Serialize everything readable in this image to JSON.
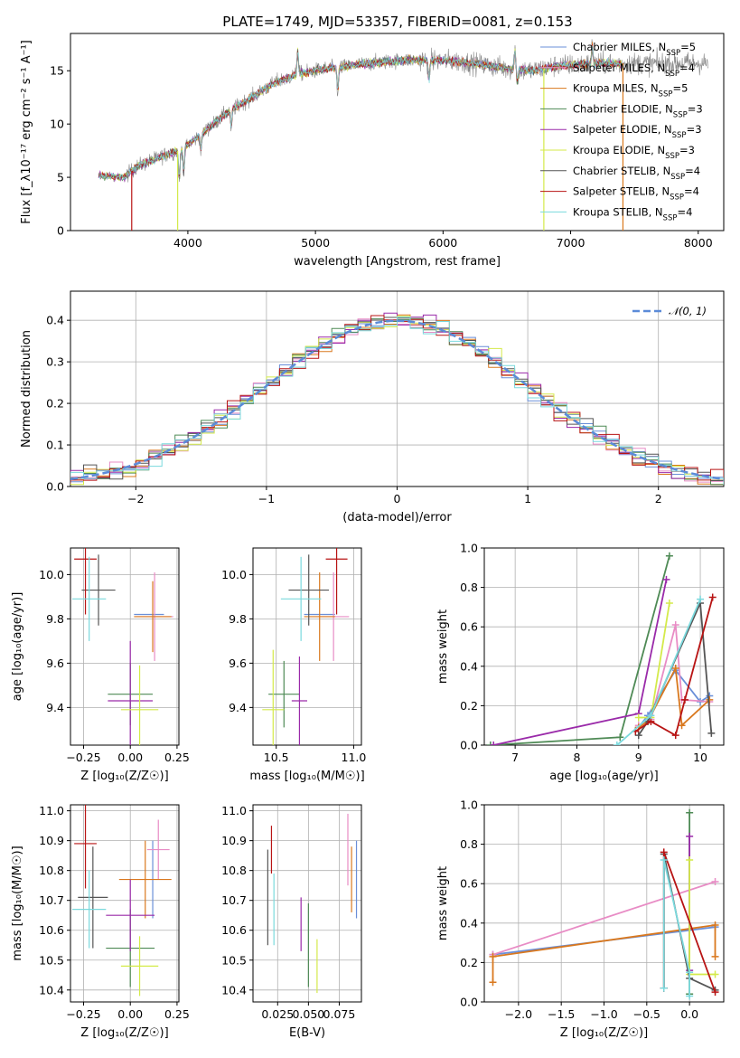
{
  "figure": {
    "title": "PLATE=1749, MJD=53357, FIBERID=0081, z=0.153"
  },
  "colors": {
    "Chabrier MILES": "#6a8fd8",
    "Salpeter MILES": "#e88cc5",
    "Kroupa MILES": "#d9781e",
    "Chabrier ELODIE": "#4e8a55",
    "Salpeter ELODIE": "#9a2aa9",
    "Kroupa ELODIE": "#d4ea4a",
    "Chabrier STELIB": "#555555",
    "Salpeter STELIB": "#b81414",
    "Kroupa STELIB": "#7ad9dd",
    "data": "#888888",
    "normal": "#5b8bd8"
  },
  "chart_data": [
    {
      "id": "spectrum",
      "type": "line",
      "xlabel": "wavelength [Angstrom, rest frame]",
      "ylabel": "Flux [f_λ10⁻¹⁷ erg cm⁻² s⁻¹ A⁻¹]",
      "xlim": [
        3080,
        8200
      ],
      "ylim": [
        0,
        18.5
      ],
      "xticks": [
        4000,
        5000,
        6000,
        7000,
        8000
      ],
      "yticks": [
        0,
        5,
        10,
        15
      ],
      "grid": false,
      "legend_position": "upper right",
      "continuum_x": [
        3300,
        3500,
        3600,
        3800,
        3950,
        4100,
        4300,
        4500,
        4700,
        4900,
        5100,
        5300,
        5500,
        5700,
        5900,
        6100,
        6300,
        6500,
        6700,
        6900,
        7100,
        7300,
        7400
      ],
      "continuum_y": [
        5.2,
        5.0,
        6.0,
        7.0,
        7.6,
        9.0,
        11.0,
        12.5,
        14.0,
        14.8,
        15.2,
        15.5,
        15.8,
        16.0,
        16.0,
        15.9,
        15.6,
        15.2,
        15.0,
        15.5,
        15.6,
        15.7,
        15.7
      ],
      "series": [
        {
          "name": "Chabrier MILES, N_SSP=5",
          "name_main": "Chabrier MILES, N",
          "name_sub": "SSP",
          "name_tail": "=5"
        },
        {
          "name": "Salpeter MILES, N_SSP=4",
          "name_main": "Salpeter MILES, N",
          "name_sub": "SSP",
          "name_tail": "=4"
        },
        {
          "name": "Kroupa MILES, N_SSP=5",
          "name_main": "Kroupa MILES, N",
          "name_sub": "SSP",
          "name_tail": "=5"
        },
        {
          "name": "Chabrier ELODIE, N_SSP=3",
          "name_main": "Chabrier ELODIE, N",
          "name_sub": "SSP",
          "name_tail": "=3"
        },
        {
          "name": "Salpeter ELODIE, N_SSP=3",
          "name_main": "Salpeter ELODIE, N",
          "name_sub": "SSP",
          "name_tail": "=3"
        },
        {
          "name": "Kroupa ELODIE, N_SSP=3",
          "name_main": "Kroupa ELODIE, N",
          "name_sub": "SSP",
          "name_tail": "=3"
        },
        {
          "name": "Chabrier STELIB, N_SSP=4",
          "name_main": "Chabrier STELIB, N",
          "name_sub": "SSP",
          "name_tail": "=4"
        },
        {
          "name": "Salpeter STELIB, N_SSP=4",
          "name_main": "Salpeter STELIB, N",
          "name_sub": "SSP",
          "name_tail": "=4"
        },
        {
          "name": "Kroupa STELIB, N_SSP=4",
          "name_main": "Kroupa STELIB, N",
          "name_sub": "SSP",
          "name_tail": "=4"
        }
      ],
      "drops": [
        {
          "x": 3560,
          "series": "Salpeter STELIB"
        },
        {
          "x": 3920,
          "series": "Kroupa ELODIE"
        },
        {
          "x": 6790,
          "series": "Kroupa ELODIE"
        },
        {
          "x": 7410,
          "series": "Kroupa MILES"
        }
      ]
    },
    {
      "id": "residuals",
      "type": "histogram",
      "xlabel": "(data-model)/error",
      "ylabel": "Normed distribution",
      "xlim": [
        -2.5,
        2.5
      ],
      "ylim": [
        0,
        0.47
      ],
      "xticks": [
        -2,
        -1,
        0,
        1,
        2
      ],
      "yticks": [
        0,
        0.1,
        0.2,
        0.3,
        0.4
      ],
      "xtick_labels": [
        "−2",
        "−1",
        "0",
        "1",
        "2"
      ],
      "ytick_labels": [
        "0.0",
        "0.1",
        "0.2",
        "0.3",
        "0.4"
      ],
      "grid": true,
      "bin_width": 0.1,
      "legend": "𝒩(0, 1)",
      "reference_curve": "N(0,1)"
    },
    {
      "id": "age-vs-Z",
      "type": "errorbar",
      "xlabel": "Z [log₁₀(Z/Z☉)]",
      "ylabel": "age  [log₁₀(age/yr)]",
      "xlim": [
        -0.32,
        0.26
      ],
      "ylim": [
        9.23,
        10.12
      ],
      "xticks": [
        -0.25,
        0,
        0.25
      ],
      "xtick_labels": [
        "−0.25",
        "0.00",
        "0.25"
      ],
      "yticks": [
        9.4,
        9.6,
        9.8,
        10.0
      ],
      "ytick_labels": [
        "9.4",
        "9.6",
        "9.8",
        "10.0"
      ],
      "grid": true,
      "points": [
        {
          "series": "Chabrier MILES",
          "x": 0.1,
          "y": 9.82,
          "xerr": 0.08,
          "yerr": 0.0
        },
        {
          "series": "Salpeter MILES",
          "x": 0.13,
          "y": 9.81,
          "xerr": 0.1,
          "yerr": 0.2
        },
        {
          "series": "Kroupa MILES",
          "x": 0.12,
          "y": 9.81,
          "xerr": 0.1,
          "yerr": 0.16
        },
        {
          "series": "Chabrier ELODIE",
          "x": 0.0,
          "y": 9.46,
          "xerr": 0.12,
          "yerr": 0.14
        },
        {
          "series": "Salpeter ELODIE",
          "x": 0.0,
          "y": 9.43,
          "xerr": 0.12,
          "yerr": 0.27
        },
        {
          "series": "Kroupa ELODIE",
          "x": 0.05,
          "y": 9.39,
          "xerr": 0.1,
          "yerr": 0.2
        },
        {
          "series": "Chabrier STELIB",
          "x": -0.17,
          "y": 9.93,
          "xerr": 0.09,
          "yerr": 0.16
        },
        {
          "series": "Salpeter STELIB",
          "x": -0.24,
          "y": 10.07,
          "xerr": 0.06,
          "yerr": 0.25
        },
        {
          "series": "Kroupa STELIB",
          "x": -0.22,
          "y": 9.89,
          "xerr": 0.09,
          "yerr": 0.19
        }
      ]
    },
    {
      "id": "age-vs-mass",
      "type": "errorbar",
      "xlabel": "mass [log₁₀(M/M☉)]",
      "ylabel": "",
      "xlim": [
        10.35,
        11.05
      ],
      "ylim": [
        9.23,
        10.12
      ],
      "xticks": [
        10.5,
        11.0
      ],
      "xtick_labels": [
        "10.5",
        "11.0"
      ],
      "yticks": [
        9.4,
        9.6,
        9.8,
        10.0
      ],
      "ytick_labels": [
        "9.4",
        "9.6",
        "9.8",
        "10.0"
      ],
      "grid": true,
      "points": [
        {
          "series": "Chabrier MILES",
          "x": 10.78,
          "y": 9.82,
          "xerr": 0.1,
          "yerr": 0.0
        },
        {
          "series": "Salpeter MILES",
          "x": 10.87,
          "y": 9.81,
          "xerr": 0.1,
          "yerr": 0.2
        },
        {
          "series": "Kroupa MILES",
          "x": 10.78,
          "y": 9.81,
          "xerr": 0.1,
          "yerr": 0.2
        },
        {
          "series": "Chabrier ELODIE",
          "x": 10.55,
          "y": 9.46,
          "xerr": 0.1,
          "yerr": 0.15
        },
        {
          "series": "Salpeter ELODIE",
          "x": 10.65,
          "y": 9.43,
          "xerr": 0.05,
          "yerr": 0.2
        },
        {
          "series": "Kroupa ELODIE",
          "x": 10.48,
          "y": 9.39,
          "xerr": 0.07,
          "yerr": 0.27
        },
        {
          "series": "Chabrier STELIB",
          "x": 10.71,
          "y": 9.93,
          "xerr": 0.13,
          "yerr": 0.16
        },
        {
          "series": "Salpeter STELIB",
          "x": 10.89,
          "y": 10.07,
          "xerr": 0.07,
          "yerr": 0.25
        },
        {
          "series": "Kroupa STELIB",
          "x": 10.66,
          "y": 9.89,
          "xerr": 0.13,
          "yerr": 0.19
        }
      ]
    },
    {
      "id": "weight-vs-age",
      "type": "line",
      "xlabel": "age  [log₁₀(age/yr)]",
      "ylabel": "mass weight",
      "xlim": [
        6.5,
        10.38
      ],
      "ylim": [
        0,
        1.0
      ],
      "xticks": [
        7,
        8,
        9,
        10
      ],
      "xtick_labels": [
        "7",
        "8",
        "9",
        "10"
      ],
      "yticks": [
        0,
        0.2,
        0.4,
        0.6,
        0.8,
        1.0
      ],
      "ytick_labels": [
        "0.0",
        "0.2",
        "0.4",
        "0.6",
        "0.8",
        "1.0"
      ],
      "grid": true,
      "series": [
        {
          "series": "Chabrier MILES",
          "x": [
            9.0,
            9.15,
            9.6,
            10.0,
            10.15
          ],
          "y": [
            0.09,
            0.15,
            0.38,
            0.22,
            0.25
          ]
        },
        {
          "series": "Salpeter MILES",
          "x": [
            9.0,
            9.2,
            9.6,
            9.7,
            10.15
          ],
          "y": [
            0.1,
            0.13,
            0.61,
            0.23,
            0.22
          ]
        },
        {
          "series": "Kroupa MILES",
          "x": [
            9.0,
            9.15,
            9.6,
            9.7,
            10.15
          ],
          "y": [
            0.09,
            0.12,
            0.39,
            0.1,
            0.23
          ]
        },
        {
          "series": "Chabrier ELODIE",
          "x": [
            6.6,
            8.7,
            9.5
          ],
          "y": [
            0.0,
            0.04,
            0.96
          ]
        },
        {
          "series": "Salpeter ELODIE",
          "x": [
            6.65,
            9.0,
            9.45
          ],
          "y": [
            0.0,
            0.16,
            0.84
          ]
        },
        {
          "series": "Kroupa ELODIE",
          "x": [
            9.0,
            9.2,
            9.5
          ],
          "y": [
            0.14,
            0.14,
            0.72
          ]
        },
        {
          "series": "Chabrier STELIB",
          "x": [
            9.0,
            9.15,
            10.0,
            10.18
          ],
          "y": [
            0.05,
            0.12,
            0.72,
            0.06
          ]
        },
        {
          "series": "Salpeter STELIB",
          "x": [
            8.95,
            9.2,
            9.6,
            9.75,
            10.2
          ],
          "y": [
            0.07,
            0.12,
            0.05,
            0.23,
            0.75
          ]
        },
        {
          "series": "Kroupa STELIB",
          "x": [
            8.65,
            9.2,
            10.0
          ],
          "y": [
            0.0,
            0.15,
            0.74
          ]
        }
      ]
    },
    {
      "id": "mass-vs-Z",
      "type": "errorbar",
      "xlabel": "Z [log₁₀(Z/Z☉)]",
      "ylabel": "mass [log₁₀(M/M☉)]",
      "xlim": [
        -0.32,
        0.26
      ],
      "ylim": [
        10.36,
        11.02
      ],
      "xticks": [
        -0.25,
        0,
        0.25
      ],
      "xtick_labels": [
        "−0.25",
        "0.00",
        "0.25"
      ],
      "yticks": [
        10.4,
        10.5,
        10.6,
        10.7,
        10.8,
        10.9,
        11.0
      ],
      "ytick_labels": [
        "10.4",
        "10.5",
        "10.6",
        "10.7",
        "10.8",
        "10.9",
        "11.0"
      ],
      "grid": true,
      "points": [
        {
          "series": "Chabrier MILES",
          "x": 0.12,
          "y": 10.77,
          "xerr": 0.0,
          "yerr": 0.13
        },
        {
          "series": "Salpeter MILES",
          "x": 0.15,
          "y": 10.87,
          "xerr": 0.06,
          "yerr": 0.1
        },
        {
          "series": "Kroupa MILES",
          "x": 0.08,
          "y": 10.77,
          "xerr": 0.14,
          "yerr": 0.13
        },
        {
          "series": "Chabrier ELODIE",
          "x": 0.0,
          "y": 10.54,
          "xerr": 0.13,
          "yerr": 0.13
        },
        {
          "series": "Salpeter ELODIE",
          "x": 0.0,
          "y": 10.65,
          "xerr": 0.13,
          "yerr": 0.12
        },
        {
          "series": "Kroupa ELODIE",
          "x": 0.05,
          "y": 10.48,
          "xerr": 0.1,
          "yerr": 0.1
        },
        {
          "series": "Chabrier STELIB",
          "x": -0.2,
          "y": 10.71,
          "xerr": 0.08,
          "yerr": 0.17
        },
        {
          "series": "Salpeter STELIB",
          "x": -0.24,
          "y": 10.89,
          "xerr": 0.06,
          "yerr": 0.15
        },
        {
          "series": "Kroupa STELIB",
          "x": -0.22,
          "y": 10.67,
          "xerr": 0.09,
          "yerr": 0.13
        }
      ]
    },
    {
      "id": "mass-vs-ebv",
      "type": "errorbar",
      "xlabel": "E(B-V)",
      "ylabel": "",
      "xlim": [
        0.005,
        0.093
      ],
      "ylim": [
        10.36,
        11.02
      ],
      "xticks": [
        0.025,
        0.05,
        0.075
      ],
      "xtick_labels": [
        "0.025",
        "0.050",
        "0.075"
      ],
      "yticks": [
        10.4,
        10.5,
        10.6,
        10.7,
        10.8,
        10.9,
        11.0
      ],
      "ytick_labels": [
        "10.4",
        "10.5",
        "10.6",
        "10.7",
        "10.8",
        "10.9",
        "11.0"
      ],
      "grid": true,
      "points": [
        {
          "series": "Chabrier MILES",
          "x": 0.089,
          "y": 10.77,
          "xerr": 0.0,
          "yerr": 0.13
        },
        {
          "series": "Salpeter MILES",
          "x": 0.082,
          "y": 10.87,
          "xerr": 0.0,
          "yerr": 0.12
        },
        {
          "series": "Kroupa MILES",
          "x": 0.085,
          "y": 10.77,
          "xerr": 0.0,
          "yerr": 0.11
        },
        {
          "series": "Chabrier ELODIE",
          "x": 0.05,
          "y": 10.55,
          "xerr": 0.0,
          "yerr": 0.14
        },
        {
          "series": "Salpeter ELODIE",
          "x": 0.044,
          "y": 10.62,
          "xerr": 0.0,
          "yerr": 0.09
        },
        {
          "series": "Kroupa ELODIE",
          "x": 0.057,
          "y": 10.48,
          "xerr": 0.0,
          "yerr": 0.09
        },
        {
          "series": "Chabrier STELIB",
          "x": 0.017,
          "y": 10.71,
          "xerr": 0.0,
          "yerr": 0.16
        },
        {
          "series": "Salpeter STELIB",
          "x": 0.02,
          "y": 10.87,
          "xerr": 0.0,
          "yerr": 0.08
        },
        {
          "series": "Kroupa STELIB",
          "x": 0.022,
          "y": 10.67,
          "xerr": 0.0,
          "yerr": 0.12
        }
      ]
    },
    {
      "id": "weight-vs-Z",
      "type": "line",
      "xlabel": "Z [log₁₀(Z/Z☉)]",
      "ylabel": "mass weight",
      "xlim": [
        -2.4,
        0.4
      ],
      "ylim": [
        0,
        1.0
      ],
      "xticks": [
        -2.0,
        -1.5,
        -1.0,
        -0.5,
        0.0
      ],
      "xtick_labels": [
        "−2.0",
        "−1.5",
        "−1.0",
        "−0.5",
        "0.0"
      ],
      "yticks": [
        0,
        0.2,
        0.4,
        0.6,
        0.8,
        1.0
      ],
      "ytick_labels": [
        "0.0",
        "0.2",
        "0.4",
        "0.6",
        "0.8",
        "1.0"
      ],
      "grid": true,
      "series": [
        {
          "series": "Chabrier MILES",
          "x": [
            -2.3,
            0.3
          ],
          "y": [
            0.24,
            0.38
          ]
        },
        {
          "series": "Salpeter MILES",
          "x": [
            -2.3,
            0.3
          ],
          "y": [
            0.24,
            0.61
          ]
        },
        {
          "series": "Kroupa MILES",
          "x": [
            -2.3,
            -2.3,
            0.3,
            0.3
          ],
          "y": [
            0.1,
            0.23,
            0.39,
            0.23
          ]
        },
        {
          "series": "Chabrier ELODIE",
          "x": [
            0.0,
            0.0
          ],
          "y": [
            0.04,
            0.96
          ]
        },
        {
          "series": "Salpeter ELODIE",
          "x": [
            0.0,
            0.0
          ],
          "y": [
            0.16,
            0.84
          ]
        },
        {
          "series": "Kroupa ELODIE",
          "x": [
            0.0,
            0.0,
            0.3
          ],
          "y": [
            0.72,
            0.14,
            0.14
          ]
        },
        {
          "series": "Chabrier STELIB",
          "x": [
            -0.3,
            -0.3,
            0.0,
            0.3
          ],
          "y": [
            0.07,
            0.75,
            0.12,
            0.06
          ]
        },
        {
          "series": "Salpeter STELIB",
          "x": [
            -0.3,
            -0.3,
            0.3
          ],
          "y": [
            0.07,
            0.76,
            0.05
          ]
        },
        {
          "series": "Kroupa STELIB",
          "x": [
            -0.3,
            -0.3,
            0.0,
            0.0
          ],
          "y": [
            0.07,
            0.72,
            0.15,
            0.03
          ]
        }
      ]
    }
  ]
}
